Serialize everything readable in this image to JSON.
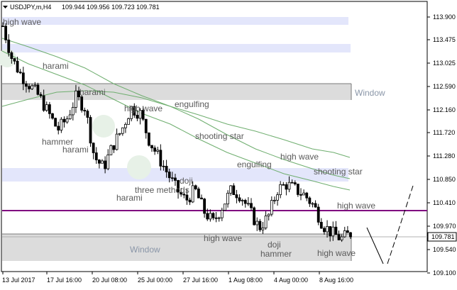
{
  "header": {
    "symbol_label": "USDJPY,m,H4",
    "ohlc_label": "109.944 109.956 109.723 109.781"
  },
  "price_scale": {
    "ticks": [
      "113.900",
      "113.475",
      "113.025",
      "112.590",
      "112.160",
      "111.720",
      "111.280",
      "110.850",
      "110.410",
      "109.970",
      "109.540",
      "109.100"
    ],
    "last_price_label": "109.781",
    "purple_level": 110.28,
    "last_price": 109.781
  },
  "time_axis": {
    "labels": [
      "13 Jul 2017",
      "17 Jul 16:00",
      "20 Jul 08:00",
      "25 Jul 00:00",
      "27 Jul 16:00",
      "1 Aug 08:00",
      "4 Aug 00:00",
      "8 Aug 16:00"
    ]
  },
  "zones": [
    {
      "type": "blue",
      "from": 113.83,
      "to": 113.71
    },
    {
      "type": "blue",
      "from": 113.41,
      "to": 113.29
    },
    {
      "type": "grey",
      "from": 112.66,
      "to": 112.41,
      "text": "Window"
    },
    {
      "type": "blue",
      "from": 110.96,
      "to": 110.82
    },
    {
      "type": "grey",
      "from": 109.84,
      "to": 109.43,
      "text": "Window"
    }
  ],
  "annotations": [
    {
      "text": "high wave"
    },
    {
      "text": "harami"
    },
    {
      "text": "harami"
    },
    {
      "text": "hammer"
    },
    {
      "text": "harami"
    },
    {
      "text": "high wave"
    },
    {
      "text": "engulfing"
    },
    {
      "text": "shooting star"
    },
    {
      "text": "harami"
    },
    {
      "text": "three methods"
    },
    {
      "text": "doji"
    },
    {
      "text": "engulfing"
    },
    {
      "text": "high wave"
    },
    {
      "text": "shooting star"
    },
    {
      "text": "high wave"
    },
    {
      "text": "high wave"
    },
    {
      "text": "doji"
    },
    {
      "text": "hammer"
    },
    {
      "text": "high wave"
    }
  ],
  "chart_data": {
    "type": "candlestick",
    "symbol": "USDJPY,m,H4",
    "ylim": [
      109.1,
      114.05
    ],
    "close_path_approx": [
      113.6,
      113.0,
      112.7,
      112.5,
      112.3,
      112.0,
      111.7,
      111.9,
      112.3,
      112.1,
      111.2,
      111.0,
      111.4,
      111.7,
      112.1,
      112.0,
      111.5,
      111.2,
      110.9,
      110.6,
      110.4,
      110.6,
      110.2,
      110.0,
      110.3,
      110.6,
      110.5,
      110.2,
      109.9,
      110.1,
      110.6,
      110.7,
      110.6,
      110.5,
      110.3,
      109.95,
      109.8,
      109.7,
      109.8
    ]
  },
  "colors": {
    "blue_zone": "#e3e6fb",
    "grey_zone": "#dcdcdc",
    "purple_line": "#800080",
    "ma": "#6fae6f",
    "candle": "#000000"
  }
}
